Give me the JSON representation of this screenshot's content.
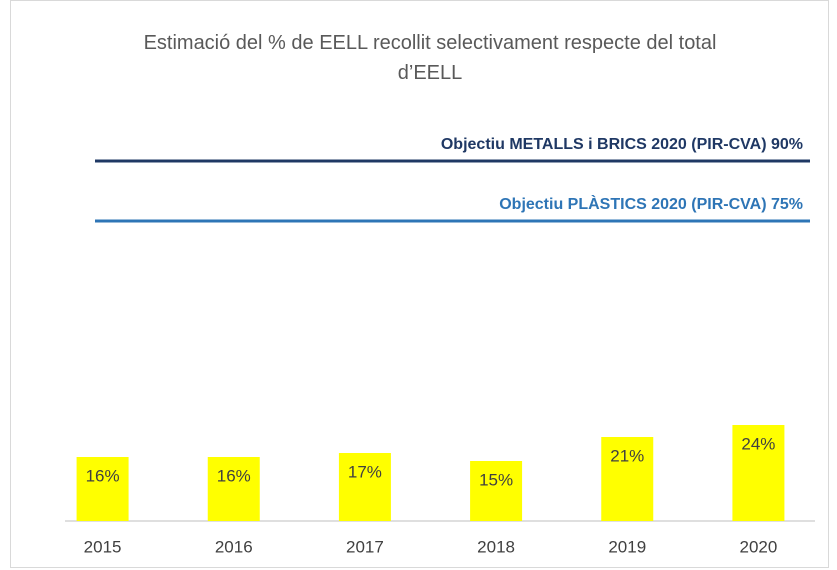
{
  "chart_data": {
    "type": "bar",
    "title": "Estimació del % de EELL recollit selectivament respecte del total d’EELL",
    "categories": [
      "2015",
      "2016",
      "2017",
      "2018",
      "2019",
      "2020"
    ],
    "values": [
      16,
      16,
      17,
      15,
      21,
      24
    ],
    "value_labels": [
      "16%",
      "16%",
      "17%",
      "15%",
      "21%",
      "24%"
    ],
    "color": "#ffff00",
    "ylim": [
      0,
      100
    ],
    "targets": [
      {
        "label": "Objectiu METALLS i BRICS 2020 (PIR-CVA) 90%",
        "value": 90,
        "color": "#1f3864"
      },
      {
        "label": "Objectiu PLÀSTICS 2020 (PIR-CVA) 75%",
        "value": 75,
        "color": "#2e75b6"
      }
    ]
  }
}
